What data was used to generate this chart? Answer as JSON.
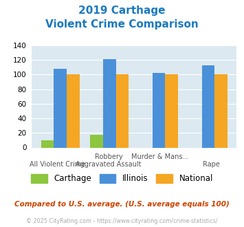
{
  "title_line1": "2019 Carthage",
  "title_line2": "Violent Crime Comparison",
  "title_color": "#1a7abf",
  "x_labels_row1": [
    "",
    "Robbery",
    "Murder & Mans...",
    ""
  ],
  "x_labels_row2": [
    "All Violent Crime",
    "Aggravated Assault",
    "",
    "Rape"
  ],
  "carthage": [
    10,
    17,
    0,
    0
  ],
  "illinois": [
    108,
    121,
    102,
    113
  ],
  "national": [
    100,
    100,
    100,
    100
  ],
  "carthage_color": "#8dc63f",
  "illinois_color": "#4a90d9",
  "national_color": "#f5a623",
  "ylim": [
    0,
    140
  ],
  "yticks": [
    0,
    20,
    40,
    60,
    80,
    100,
    120,
    140
  ],
  "plot_bg": "#dce9f0",
  "footer_text": "Compared to U.S. average. (U.S. average equals 100)",
  "footer_color": "#cc4400",
  "copyright_text": "© 2025 CityRating.com - https://www.cityrating.com/crime-statistics/",
  "copyright_color": "#aaaaaa",
  "legend_labels": [
    "Carthage",
    "Illinois",
    "National"
  ]
}
